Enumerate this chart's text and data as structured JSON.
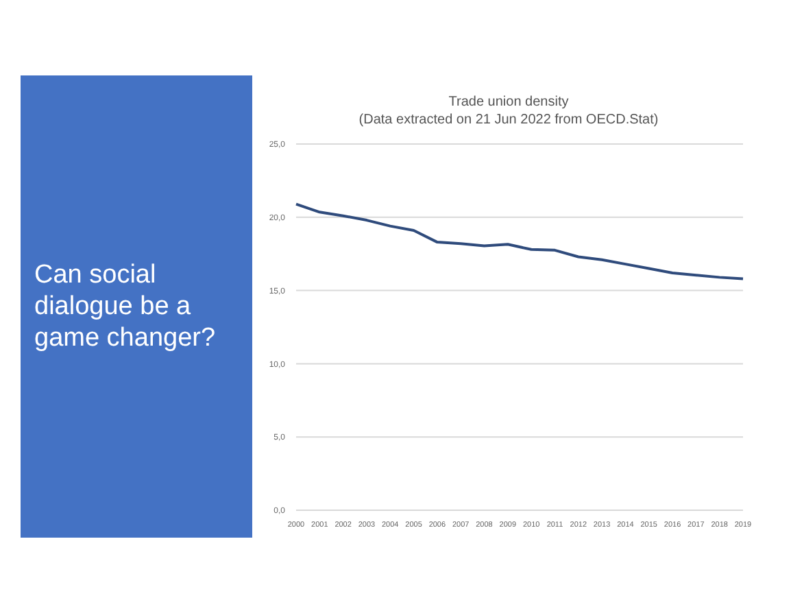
{
  "chart_data": {
    "type": "line",
    "title": "Trade union density",
    "subtitle": "(Data extracted on 21 Jun 2022 from OECD.Stat)",
    "annotations": [
      "Can social dialogue be a game changer?"
    ],
    "categories": [
      "2000",
      "2001",
      "2002",
      "2003",
      "2004",
      "2005",
      "2006",
      "2007",
      "2008",
      "2009",
      "2010",
      "2011",
      "2012",
      "2013",
      "2014",
      "2015",
      "2016",
      "2017",
      "2018",
      "2019"
    ],
    "series": [
      {
        "color": "#2f4b7c",
        "values": [
          20.9,
          20.35,
          20.1,
          19.8,
          19.4,
          19.1,
          18.3,
          18.2,
          18.05,
          18.15,
          17.8,
          17.75,
          17.3,
          17.1,
          16.8,
          16.5,
          16.2,
          16.05,
          15.9,
          15.8
        ]
      }
    ],
    "ylim": [
      0,
      25
    ],
    "yticks": [
      {
        "value": 0,
        "label": "0,0"
      },
      {
        "value": 5,
        "label": "5,0"
      },
      {
        "value": 10,
        "label": "10,0"
      },
      {
        "value": 15,
        "label": "15,0"
      },
      {
        "value": 20,
        "label": "20,0"
      },
      {
        "value": 25,
        "label": "25,0"
      }
    ],
    "grid": "y",
    "legend": false,
    "marker": "none",
    "line_style": "solid"
  }
}
